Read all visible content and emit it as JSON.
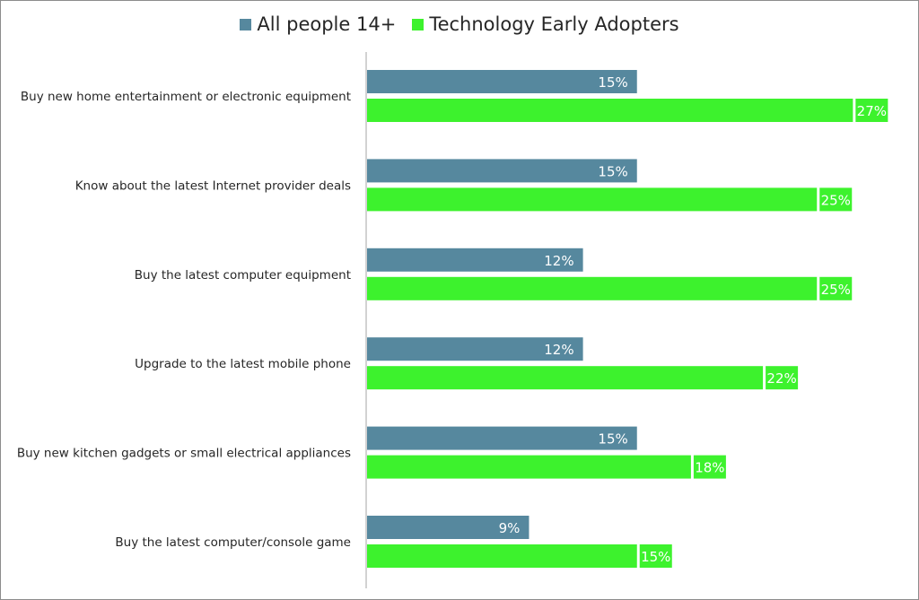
{
  "chart_data": {
    "type": "bar",
    "orientation": "horizontal",
    "categories": [
      "Buy new home entertainment or electronic equipment",
      "Know about the latest Internet provider deals",
      "Buy the latest computer equipment",
      "Upgrade to the latest mobile phone",
      "Buy new kitchen gadgets or small electrical appliances",
      "Buy the latest computer/console game"
    ],
    "series": [
      {
        "name": "All people 14+",
        "values": [
          15,
          15,
          12,
          12,
          15,
          9
        ],
        "labels": [
          "15%",
          "15%",
          "12%",
          "12%",
          "15%",
          "9%"
        ],
        "color": "#56889e"
      },
      {
        "name": "Technology Early Adopters",
        "values": [
          27,
          25,
          25,
          22,
          18,
          15
        ],
        "labels": [
          "27%",
          "25%",
          "25%",
          "22%",
          "18%",
          "15%"
        ],
        "color": "#3df22d"
      }
    ],
    "value_unit": "%",
    "xlim": [
      0,
      30
    ],
    "grid": false,
    "legend_position": "top-center",
    "title": "",
    "xlabel": "",
    "ylabel": ""
  }
}
